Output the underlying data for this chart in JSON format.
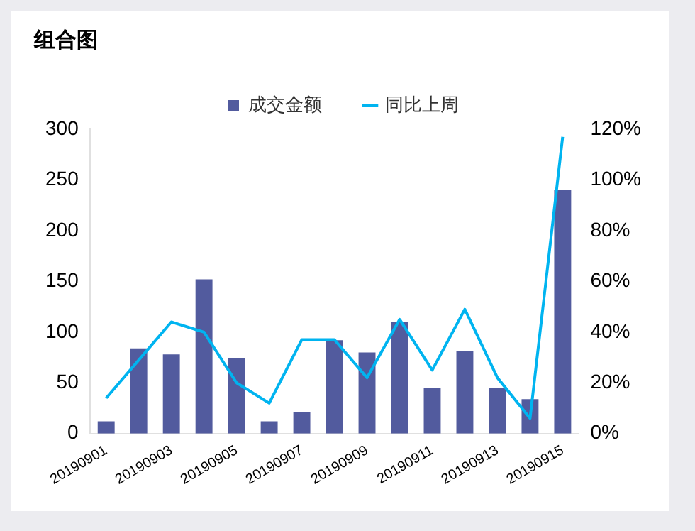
{
  "chart_data": {
    "type": "bar",
    "title": "组合图",
    "categories": [
      "20190901",
      null,
      "20190903",
      null,
      "20190905",
      null,
      "20190907",
      null,
      "20190909",
      null,
      "20190911",
      null,
      "20190913",
      null,
      "20190915"
    ],
    "series": [
      {
        "name": "成交金额",
        "color": "#525b9e",
        "values": [
          12,
          84,
          78,
          152,
          74,
          12,
          21,
          92,
          80,
          110,
          45,
          81,
          45,
          34,
          240
        ]
      },
      {
        "name": "同比上周",
        "type": "line",
        "axis": "y2",
        "color": "#00b4f0",
        "values": [
          14,
          29,
          44,
          40,
          20,
          12,
          37,
          37,
          22,
          45,
          25,
          49,
          22,
          6,
          117
        ]
      }
    ],
    "ylim": [
      0,
      300
    ],
    "yticks": [
      0,
      50,
      100,
      150,
      200,
      250,
      300
    ],
    "y2lim": [
      0,
      120
    ],
    "y2ticks": [
      {
        "value": 0,
        "label": "0%"
      },
      {
        "value": 20,
        "label": "20%"
      },
      {
        "value": 40,
        "label": "40%"
      },
      {
        "value": 60,
        "label": "60%"
      },
      {
        "value": 80,
        "label": "80%"
      },
      {
        "value": 100,
        "label": "100%"
      },
      {
        "value": 120,
        "label": "120%"
      }
    ],
    "grid": false,
    "legend": "top",
    "marker": "none",
    "line_style": "solid"
  }
}
